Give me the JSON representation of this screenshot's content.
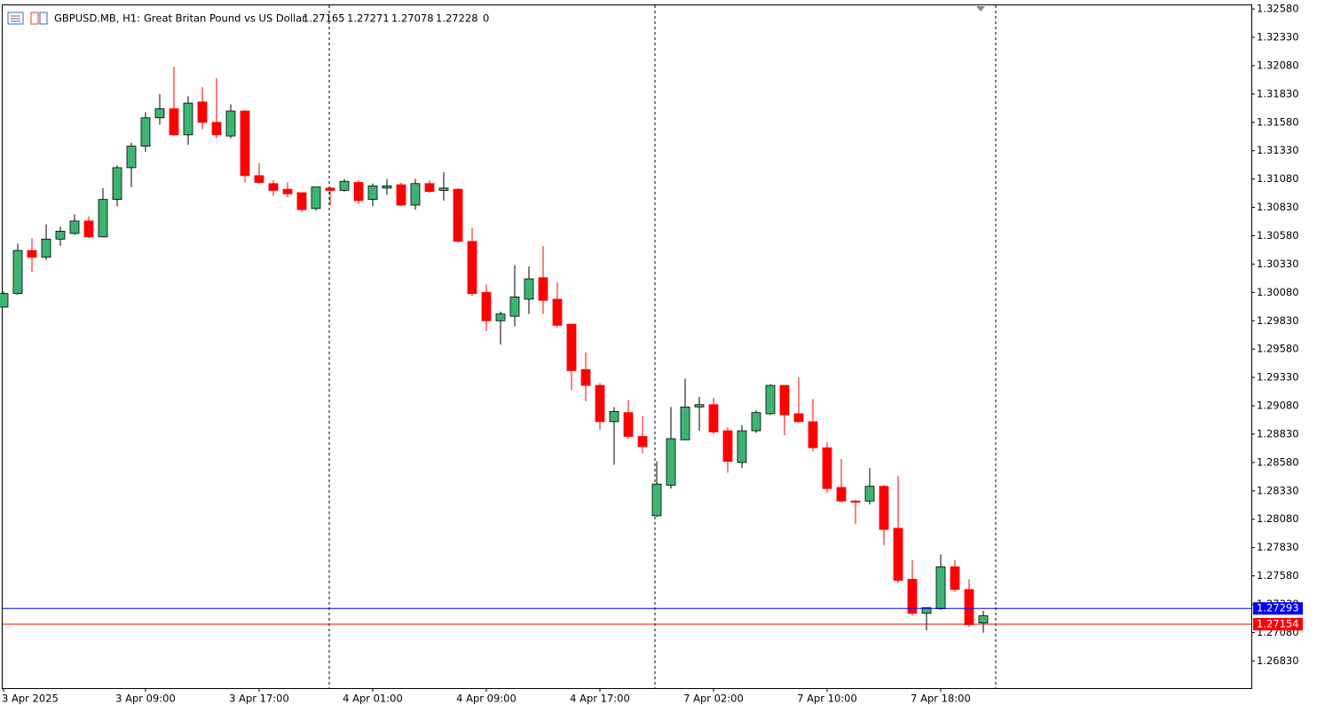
{
  "chart_data": {
    "type": "candlestick",
    "symbol": "GBPUSD.MB, H1:",
    "description": "Great Britan Pound vs US Dollar",
    "tick_volume": 0,
    "up_color": "#3cb371",
    "down_color": "#ff0000",
    "categories": [
      "3 Apr 2025",
      null,
      null,
      null,
      null,
      null,
      null,
      null,
      null,
      null,
      "3 Apr 09:00",
      null,
      null,
      null,
      null,
      null,
      null,
      null,
      "3 Apr 17:00",
      null,
      null,
      null,
      null,
      null,
      null,
      null,
      "4 Apr 01:00",
      null,
      null,
      null,
      null,
      null,
      null,
      null,
      "4 Apr 09:00",
      null,
      null,
      null,
      null,
      null,
      null,
      null,
      "4 Apr 17:00",
      null,
      null,
      null,
      null,
      null,
      null,
      null,
      "7 Apr 02:00",
      null,
      null,
      null,
      null,
      null,
      null,
      null,
      "7 Apr 10:00",
      null,
      null,
      null,
      null,
      null,
      null,
      null,
      "7 Apr 18:00",
      null,
      null,
      null
    ],
    "open": [
      1.2995,
      1.3007,
      1.3045,
      1.3039,
      1.3055,
      1.306,
      1.3071,
      1.3057,
      1.309,
      1.3118,
      1.3137,
      1.3162,
      1.317,
      1.3147,
      1.3176,
      1.3158,
      1.3146,
      1.3168,
      1.3111,
      1.3104,
      1.3099,
      1.3096,
      1.3082,
      1.31,
      1.3098,
      1.3105,
      1.309,
      1.31,
      1.3103,
      1.3085,
      1.3104,
      1.3098,
      1.3099,
      1.3053,
      1.3008,
      1.2983,
      1.2987,
      1.3002,
      1.3021,
      1.3002,
      1.298,
      1.294,
      1.2926,
      1.2894,
      1.2902,
      1.2881,
      1.2811,
      1.2838,
      1.2878,
      1.2907,
      1.2909,
      1.2886,
      1.2858,
      1.2886,
      1.2901,
      1.2926,
      1.2901,
      1.2894,
      1.2871,
      1.2836,
      1.2824,
      1.2824,
      1.2837,
      1.28,
      1.2755,
      1.2725,
      1.2729,
      1.2766,
      1.2746,
      1.27165
    ],
    "high": [
      1.3009,
      1.3051,
      1.3056,
      1.3068,
      1.3066,
      1.3077,
      1.3075,
      1.31,
      1.312,
      1.314,
      1.3167,
      1.3183,
      1.3207,
      1.3181,
      1.3189,
      1.3197,
      1.3174,
      1.3169,
      1.3122,
      1.3107,
      1.3105,
      1.3096,
      1.3101,
      1.3101,
      1.3108,
      1.3107,
      1.3104,
      1.3108,
      1.3105,
      1.3108,
      1.3107,
      1.3114,
      1.31,
      1.3065,
      1.3015,
      1.2991,
      1.3032,
      1.3031,
      1.3049,
      1.3017,
      1.298,
      1.2955,
      1.2928,
      1.2907,
      1.2913,
      1.2899,
      1.2859,
      1.2907,
      1.2932,
      1.2916,
      1.2915,
      1.2889,
      1.2891,
      1.2904,
      1.2927,
      1.2926,
      1.2933,
      1.2914,
      1.2876,
      1.2861,
      1.2825,
      1.2853,
      1.2838,
      1.2846,
      1.2772,
      1.273,
      1.2777,
      1.2772,
      1.2755,
      1.27271
    ],
    "low": [
      1.2995,
      1.3006,
      1.3026,
      1.3037,
      1.3049,
      1.3059,
      1.3056,
      1.3057,
      1.3084,
      1.3101,
      1.3132,
      1.3156,
      1.3146,
      1.3138,
      1.3152,
      1.3144,
      1.3144,
      1.3105,
      1.3104,
      1.3093,
      1.3092,
      1.3079,
      1.308,
      1.3085,
      1.3097,
      1.3086,
      1.3084,
      1.3094,
      1.3084,
      1.3081,
      1.3096,
      1.3089,
      1.3052,
      1.3005,
      1.2974,
      1.2962,
      1.2978,
      1.2989,
      1.2989,
      1.2977,
      1.2922,
      1.2912,
      1.2887,
      1.2856,
      1.2879,
      1.2866,
      1.281,
      1.2835,
      1.2878,
      1.2886,
      1.2883,
      1.2849,
      1.2853,
      1.2884,
      1.29,
      1.2882,
      1.2893,
      1.2868,
      1.2831,
      1.2823,
      1.2804,
      1.2821,
      1.2785,
      1.2752,
      1.2723,
      1.271,
      1.2728,
      1.2744,
      1.2713,
      1.27078
    ],
    "close": [
      1.3007,
      1.3045,
      1.3039,
      1.3055,
      1.3062,
      1.3071,
      1.3057,
      1.309,
      1.3118,
      1.3137,
      1.3162,
      1.317,
      1.3147,
      1.3175,
      1.3158,
      1.3147,
      1.3168,
      1.3111,
      1.3105,
      1.3098,
      1.3095,
      1.3081,
      1.3101,
      1.3098,
      1.3106,
      1.3089,
      1.3102,
      1.3102,
      1.3085,
      1.3104,
      1.3097,
      1.31,
      1.3053,
      1.3007,
      1.2983,
      1.2989,
      1.3004,
      1.302,
      1.3001,
      1.2979,
      1.2939,
      1.2926,
      1.2894,
      1.2903,
      1.2881,
      1.2872,
      1.2839,
      1.2879,
      1.2907,
      1.2909,
      1.2885,
      1.2859,
      1.2886,
      1.2902,
      1.2926,
      1.29,
      1.2894,
      1.2871,
      1.2835,
      1.2824,
      1.2823,
      1.2837,
      1.2799,
      1.2754,
      1.2725,
      1.273,
      1.2766,
      1.2746,
      1.2715,
      1.27228
    ],
    "ylim": [
      1.2659,
      1.3262
    ],
    "yticks": [
      {
        "value": 1.3258,
        "label": "1.32580"
      },
      {
        "value": 1.3233,
        "label": "1.32330"
      },
      {
        "value": 1.3208,
        "label": "1.32080"
      },
      {
        "value": 1.3183,
        "label": "1.31830"
      },
      {
        "value": 1.3158,
        "label": "1.31580"
      },
      {
        "value": 1.3133,
        "label": "1.31330"
      },
      {
        "value": 1.3108,
        "label": "1.31080"
      },
      {
        "value": 1.3083,
        "label": "1.30830"
      },
      {
        "value": 1.3058,
        "label": "1.30580"
      },
      {
        "value": 1.3033,
        "label": "1.30330"
      },
      {
        "value": 1.3008,
        "label": "1.30080"
      },
      {
        "value": 1.2983,
        "label": "1.29830"
      },
      {
        "value": 1.2958,
        "label": "1.29580"
      },
      {
        "value": 1.2933,
        "label": "1.29330"
      },
      {
        "value": 1.2908,
        "label": "1.29080"
      },
      {
        "value": 1.2883,
        "label": "1.28830"
      },
      {
        "value": 1.2858,
        "label": "1.28580"
      },
      {
        "value": 1.2833,
        "label": "1.28330"
      },
      {
        "value": 1.2808,
        "label": "1.28080"
      },
      {
        "value": 1.2783,
        "label": "1.27830"
      },
      {
        "value": 1.2758,
        "label": "1.27580"
      },
      {
        "value": 1.2733,
        "label": "1.27330"
      },
      {
        "value": 1.2708,
        "label": "1.27080"
      },
      {
        "value": 1.2683,
        "label": "1.26830"
      }
    ],
    "price_lines": [
      {
        "value": 1.27293,
        "color": "#0000ff"
      },
      {
        "value": 1.27154,
        "color": "#ff0000"
      }
    ]
  }
}
